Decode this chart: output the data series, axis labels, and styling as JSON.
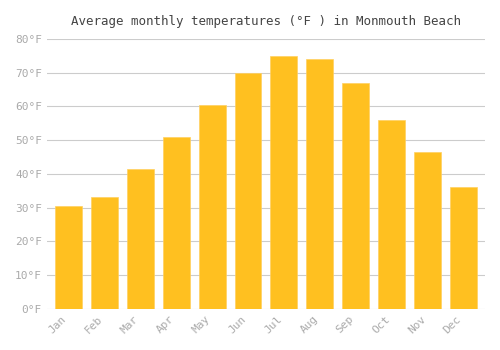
{
  "title": "Average monthly temperatures (°F ) in Monmouth Beach",
  "months": [
    "Jan",
    "Feb",
    "Mar",
    "Apr",
    "May",
    "Jun",
    "Jul",
    "Aug",
    "Sep",
    "Oct",
    "Nov",
    "Dec"
  ],
  "values": [
    30.5,
    33,
    41.5,
    51,
    60.5,
    70,
    75,
    74,
    67,
    56,
    46.5,
    36
  ],
  "bar_color_face": "#FFC020",
  "bar_color_edge": "#FFD060",
  "background_color": "#FFFFFF",
  "grid_color": "#CCCCCC",
  "tick_label_color": "#AAAAAA",
  "title_color": "#444444",
  "ylim": [
    0,
    80
  ],
  "yticks": [
    0,
    10,
    20,
    30,
    40,
    50,
    60,
    70,
    80
  ],
  "ytick_labels": [
    "0°F",
    "10°F",
    "20°F",
    "30°F",
    "40°F",
    "50°F",
    "60°F",
    "70°F",
    "80°F"
  ]
}
